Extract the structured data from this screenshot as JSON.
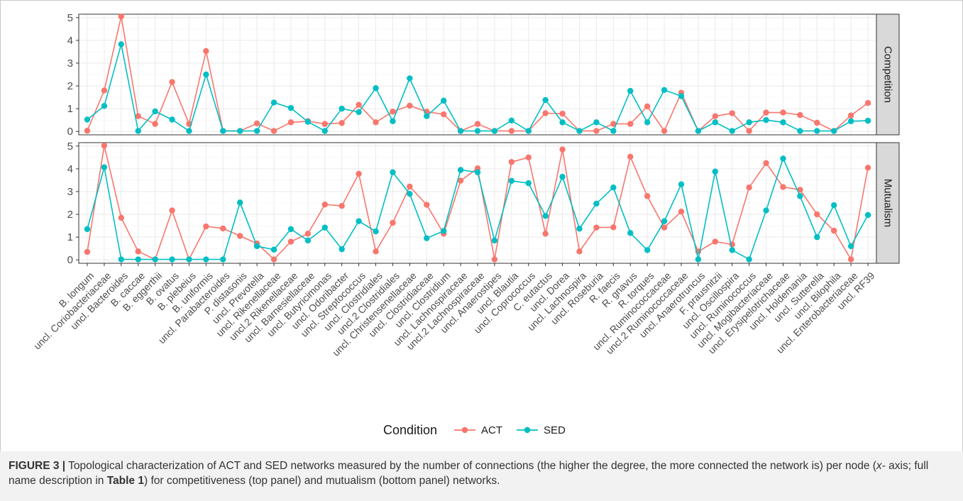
{
  "chart_data": {
    "type": "line",
    "categories": [
      "B. longum",
      "uncl. Coriobacteriaceae",
      "uncl. Bacteroides",
      "B. caccae",
      "B. eggerthii",
      "B. ovatus",
      "B. plebeius",
      "B. uniformis",
      "uncl. Parabacteroides",
      "P. distasonis",
      "uncl. Prevotella",
      "uncl. Rikenellaceae",
      "uncl.2 Rikenellaceae",
      "uncl. Barnesiellaceae",
      "uncl. Butyricimonas",
      "uncl. Odoribacter",
      "uncl. Streptococcus",
      "uncl. Clostridiales",
      "uncl.2 Clostridiales",
      "uncl. Christensenellaceae",
      "uncl. Clostridiaceae",
      "uncl. Clostridium",
      "uncl. Lachnospiraceae",
      "uncl.2 Lachnospiraceae",
      "uncl. Anaerostipes",
      "uncl. Blautia",
      "uncl. Coprococcus",
      "C. eutactus",
      "uncl. Dorea",
      "uncl. Lachnospira",
      "uncl. Roseburia",
      "R. faecis",
      "R. gnavus",
      "R. torques",
      "uncl. Ruminococcaceae",
      "uncl.2 Ruminococcaceae",
      "uncl. Anaerotruncus",
      "F. prausnitzii",
      "uncl. Oscillospira",
      "uncl. Ruminococcus",
      "uncl. Mogibacteriaceae",
      "uncl. Erysipelotrichaceae",
      "uncl. Holdemania",
      "uncl. Sutterella",
      "uncl. Bilophila",
      "uncl. Enterobacteriaceae",
      "uncl. RF39"
    ],
    "panels": [
      {
        "strip_label": "Competition",
        "ylim": [
          0,
          5
        ],
        "series": [
          {
            "name": "ACT",
            "values": [
              0.03,
              1.8,
              5.05,
              0.67,
              0.33,
              2.17,
              0.33,
              3.53,
              0.02,
              0.02,
              0.35,
              0.02,
              0.4,
              0.45,
              0.33,
              0.37,
              1.17,
              0.4,
              0.87,
              1.13,
              0.87,
              0.75,
              0.02,
              0.33,
              0.02,
              0.02,
              0.02,
              0.8,
              0.78,
              0.02,
              0.02,
              0.33,
              0.33,
              1.1,
              0.02,
              1.7,
              0.02,
              0.67,
              0.8,
              0.02,
              0.83,
              0.83,
              0.72,
              0.38,
              0.02,
              0.7,
              1.25
            ]
          },
          {
            "name": "SED",
            "values": [
              0.52,
              1.12,
              3.83,
              0.02,
              0.88,
              0.52,
              0.02,
              2.5,
              0.02,
              0.02,
              0.02,
              1.27,
              1.03,
              0.42,
              0.02,
              1.0,
              0.85,
              1.9,
              0.45,
              2.33,
              0.67,
              1.35,
              0.02,
              0.02,
              0.02,
              0.48,
              0.02,
              1.38,
              0.4,
              0.02,
              0.4,
              0.02,
              1.78,
              0.4,
              1.82,
              1.55,
              0.02,
              0.4,
              0.02,
              0.4,
              0.5,
              0.4,
              0.02,
              0.02,
              0.02,
              0.45,
              0.47
            ]
          }
        ]
      },
      {
        "strip_label": "Mutualism",
        "ylim": [
          0,
          5
        ],
        "series": [
          {
            "name": "ACT",
            "values": [
              0.35,
              5.02,
              1.85,
              0.37,
              0.02,
              2.17,
              0.02,
              1.47,
              1.38,
              1.05,
              0.72,
              0.02,
              0.8,
              1.15,
              2.43,
              2.37,
              3.78,
              0.37,
              1.63,
              3.22,
              2.42,
              1.15,
              3.48,
              4.02,
              0.02,
              4.3,
              4.5,
              1.15,
              4.85,
              0.37,
              1.42,
              1.43,
              4.53,
              2.8,
              1.42,
              2.12,
              0.37,
              0.8,
              0.68,
              3.18,
              4.25,
              3.2,
              3.08,
              2.0,
              1.28,
              0.02,
              4.05
            ]
          },
          {
            "name": "SED",
            "values": [
              1.35,
              4.07,
              0.02,
              0.02,
              0.02,
              0.02,
              0.02,
              0.02,
              0.02,
              2.52,
              0.6,
              0.45,
              1.35,
              0.85,
              1.42,
              0.47,
              1.7,
              1.25,
              3.85,
              2.9,
              0.95,
              1.27,
              3.95,
              3.85,
              0.85,
              3.47,
              3.37,
              1.93,
              3.65,
              1.37,
              2.47,
              3.18,
              1.18,
              0.43,
              1.7,
              3.32,
              0.02,
              3.88,
              0.43,
              0.02,
              2.17,
              4.45,
              2.8,
              1.0,
              2.4,
              0.6,
              1.97
            ]
          }
        ]
      }
    ],
    "yticks": [
      0,
      1,
      2,
      3,
      4,
      5
    ],
    "grid": true,
    "legend": {
      "title": "Condition",
      "position": "bottom",
      "entries": [
        "ACT",
        "SED"
      ]
    },
    "colors": {
      "ACT": "#f8766d",
      "SED": "#00bfc4",
      "panel_bg": "#ffffff",
      "grid": "#ebebeb",
      "strip_bg": "#d9d9d9"
    }
  },
  "caption": {
    "label": "FIGURE 3 |",
    "text_1": " Topological characterization of ACT and SED networks measured by the number of connections (the higher the degree, the more connected the network is) per node (",
    "text_x": "x-",
    "text_2": " axis; full name description in ",
    "table_ref": "Table 1",
    "text_3": ") for competitiveness (top panel) and mutualism (bottom panel) networks."
  }
}
